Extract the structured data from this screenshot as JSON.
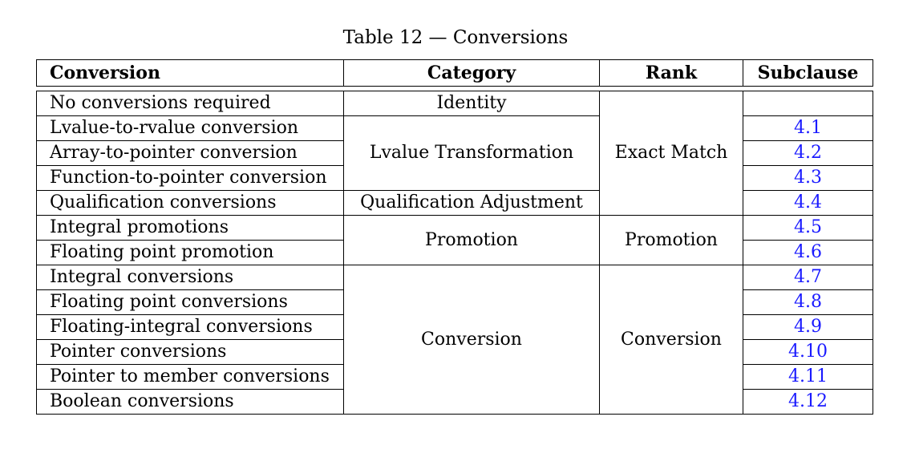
{
  "caption": "Table 12 — Conversions",
  "headers": {
    "conversion": "Conversion",
    "category": "Category",
    "rank": "Rank",
    "subclause": "Subclause"
  },
  "conversions": [
    "No conversions required",
    "Lvalue-to-rvalue conversion",
    "Array-to-pointer conversion",
    "Function-to-pointer conversion",
    "Qualification conversions",
    "Integral promotions",
    "Floating point promotion",
    "Integral conversions",
    "Floating point conversions",
    "Floating-integral conversions",
    "Pointer conversions",
    "Pointer to member conversions",
    "Boolean conversions"
  ],
  "categories": {
    "identity": "Identity",
    "lvalue_transformation": "Lvalue Transformation",
    "qualification_adjustment": "Qualification Adjustment",
    "promotion": "Promotion",
    "conversion": "Conversion"
  },
  "ranks": {
    "exact_match": "Exact Match",
    "promotion": "Promotion",
    "conversion": "Conversion"
  },
  "subclauses": [
    "",
    "4.1",
    "4.2",
    "4.3",
    "4.4",
    "4.5",
    "4.6",
    "4.7",
    "4.8",
    "4.9",
    "4.10",
    "4.11",
    "4.12"
  ],
  "colors": {
    "link": "#1a1aff"
  }
}
